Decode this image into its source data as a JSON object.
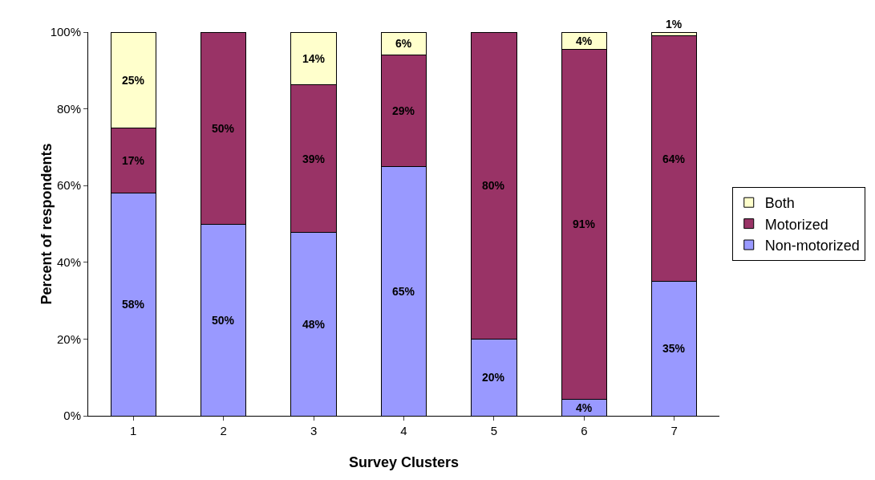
{
  "chart_data": {
    "type": "bar",
    "stacked": true,
    "xlabel": "Survey Clusters",
    "ylabel": "Percent of respondents",
    "categories": [
      "1",
      "2",
      "3",
      "4",
      "5",
      "6",
      "7"
    ],
    "series": [
      {
        "name": "Non-motorized",
        "color": "#9999ff",
        "values": [
          58,
          50,
          47.7,
          65,
          20,
          4.3,
          35
        ],
        "value_labels": [
          "58%",
          "50%",
          "48%",
          "65%",
          "20%",
          "4%",
          "35%"
        ]
      },
      {
        "name": "Motorized",
        "color": "#993366",
        "values": [
          17,
          50,
          38.5,
          29,
          80,
          91.3,
          64
        ],
        "value_labels": [
          "17%",
          "50%",
          "39%",
          "29%",
          "80%",
          "91%",
          "64%"
        ]
      },
      {
        "name": "Both",
        "color": "#ffffcc",
        "values": [
          25,
          null,
          13.8,
          6,
          null,
          4.4,
          1
        ],
        "value_labels": [
          "25%",
          null,
          "14%",
          "6%",
          null,
          "4%",
          "1%"
        ]
      }
    ],
    "ylim": [
      0,
      100
    ],
    "yticks": [
      {
        "value": 0,
        "label": "0%"
      },
      {
        "value": 20,
        "label": "20%"
      },
      {
        "value": 40,
        "label": "40%"
      },
      {
        "value": 60,
        "label": "60%"
      },
      {
        "value": 80,
        "label": "80%"
      },
      {
        "value": 100,
        "label": "100%"
      }
    ],
    "grid": false,
    "legend": "right"
  }
}
